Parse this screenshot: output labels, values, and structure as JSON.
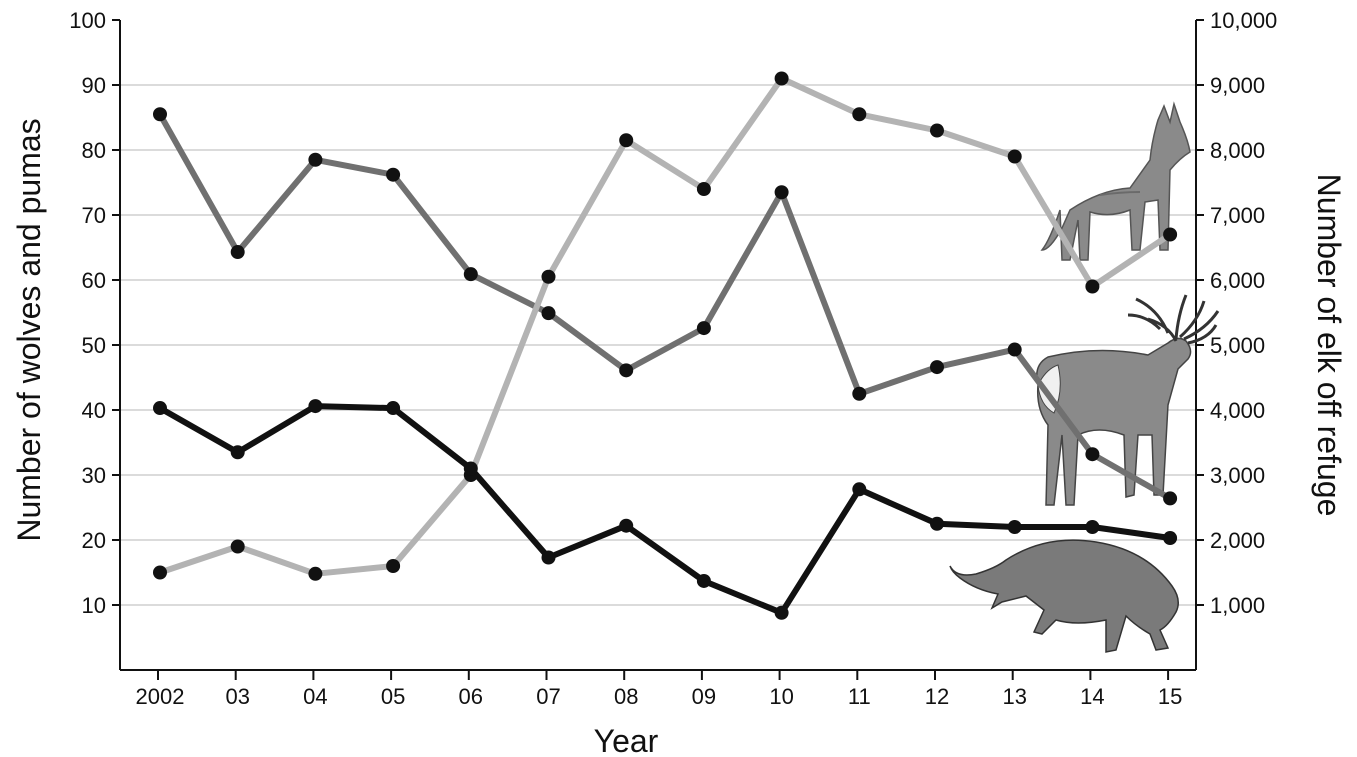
{
  "chart_data": {
    "type": "line",
    "xlabel": "Year",
    "ylabel_left": "Number of wolves and pumas",
    "ylabel_right": "Number of elk off refuge",
    "categories": [
      "2002",
      "03",
      "04",
      "05",
      "06",
      "07",
      "08",
      "09",
      "10",
      "11",
      "12",
      "13",
      "14",
      "15"
    ],
    "ylim_left": [
      0,
      100
    ],
    "ylim_right": [
      0,
      10000
    ],
    "yticks_left": [
      10,
      20,
      30,
      40,
      50,
      60,
      70,
      80,
      90,
      100
    ],
    "yticks_right": [
      "1,000",
      "2,000",
      "3,000",
      "4,000",
      "5,000",
      "6,000",
      "7,000",
      "8,000",
      "9,000",
      "10,000"
    ],
    "grid": true,
    "series": [
      {
        "axis": "right",
        "color": "#707070",
        "values": [
          8550,
          6430,
          7850,
          7620,
          6090,
          5490,
          4610,
          5260,
          7350,
          4250,
          4660,
          4930,
          3320,
          2640
        ]
      },
      {
        "axis": "left",
        "color": "#b3b3b3",
        "values": [
          15,
          19,
          14.8,
          16,
          30,
          60.5,
          81.5,
          74,
          91,
          85.5,
          83,
          79,
          59,
          67
        ]
      },
      {
        "axis": "left",
        "color": "#111111",
        "values": [
          40.3,
          33.5,
          40.6,
          40.3,
          31,
          17.3,
          22.2,
          13.7,
          8.8,
          27.8,
          22.5,
          22,
          22,
          20.3
        ]
      }
    ],
    "illustrations": [
      "wolf-illustration",
      "elk-illustration",
      "puma-illustration"
    ]
  }
}
